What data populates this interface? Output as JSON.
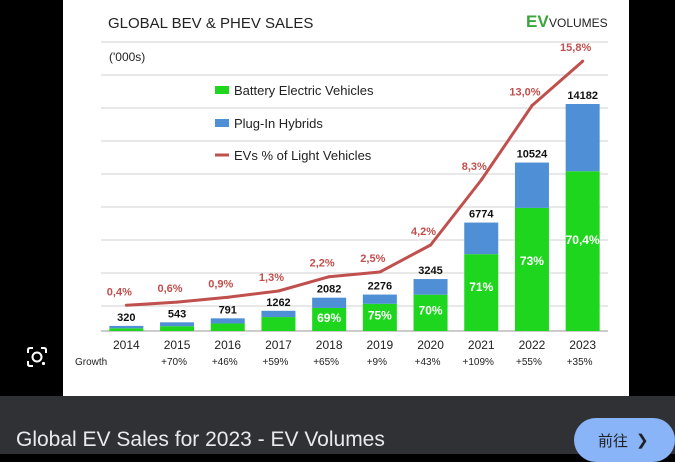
{
  "page": {
    "caption": "Global EV Sales for 2023 - EV Volumes",
    "visit_button": "前往",
    "lens_icon": "google-lens-icon",
    "chevron_icon": "chevron-right-icon"
  },
  "colors": {
    "bev": "#1ed61e",
    "phev": "#4f8fd6",
    "line": "#c0504d",
    "brand_green": "#3aa63a"
  },
  "chart_data": {
    "type": "bar",
    "stacked": true,
    "title": "GLOBAL BEV & PHEV SALES",
    "unit_label": "('000s)",
    "brand": {
      "ev": "EV",
      "volumes": "VOLUMES"
    },
    "categories": [
      "2014",
      "2015",
      "2016",
      "2017",
      "2018",
      "2019",
      "2020",
      "2021",
      "2022",
      "2023"
    ],
    "totals": [
      320,
      543,
      791,
      1262,
      2082,
      2276,
      3245,
      6774,
      10524,
      14182
    ],
    "series": [
      {
        "name": "Battery Electric Vehicles",
        "values": [
          170,
          300,
          470,
          870,
          1440,
          1700,
          2270,
          4800,
          7690,
          9980
        ]
      },
      {
        "name": "Plug-In Hybrids",
        "values": [
          150,
          243,
          321,
          392,
          642,
          576,
          975,
          1974,
          2834,
          4202
        ]
      }
    ],
    "bev_share_labels": [
      "",
      "",
      "",
      "",
      "69%",
      "75%",
      "70%",
      "71%",
      "73%",
      "70,4%"
    ],
    "line_series": {
      "name": "EVs % of Light Vehicles",
      "values": [
        0.4,
        0.6,
        0.9,
        1.3,
        2.2,
        2.5,
        4.2,
        8.3,
        13.0,
        15.8
      ],
      "labels": [
        "0,4%",
        "0,6%",
        "0,9%",
        "1,3%",
        "2,2%",
        "2,5%",
        "4,2%",
        "8,3%",
        "13,0%",
        "15,8%"
      ]
    },
    "growth_label": "Growth",
    "growth": [
      "",
      "+70%",
      "+46%",
      "+59%",
      "+65%",
      "+9%",
      "+43%",
      "+109%",
      "+55%",
      "+35%"
    ],
    "ylim": [
      0,
      15000
    ],
    "line_ylim": [
      0,
      17.5
    ],
    "legend": [
      "Battery Electric Vehicles",
      "Plug-In Hybrids",
      "EVs % of Light Vehicles"
    ],
    "legend_position": "top-left",
    "grid": true
  }
}
